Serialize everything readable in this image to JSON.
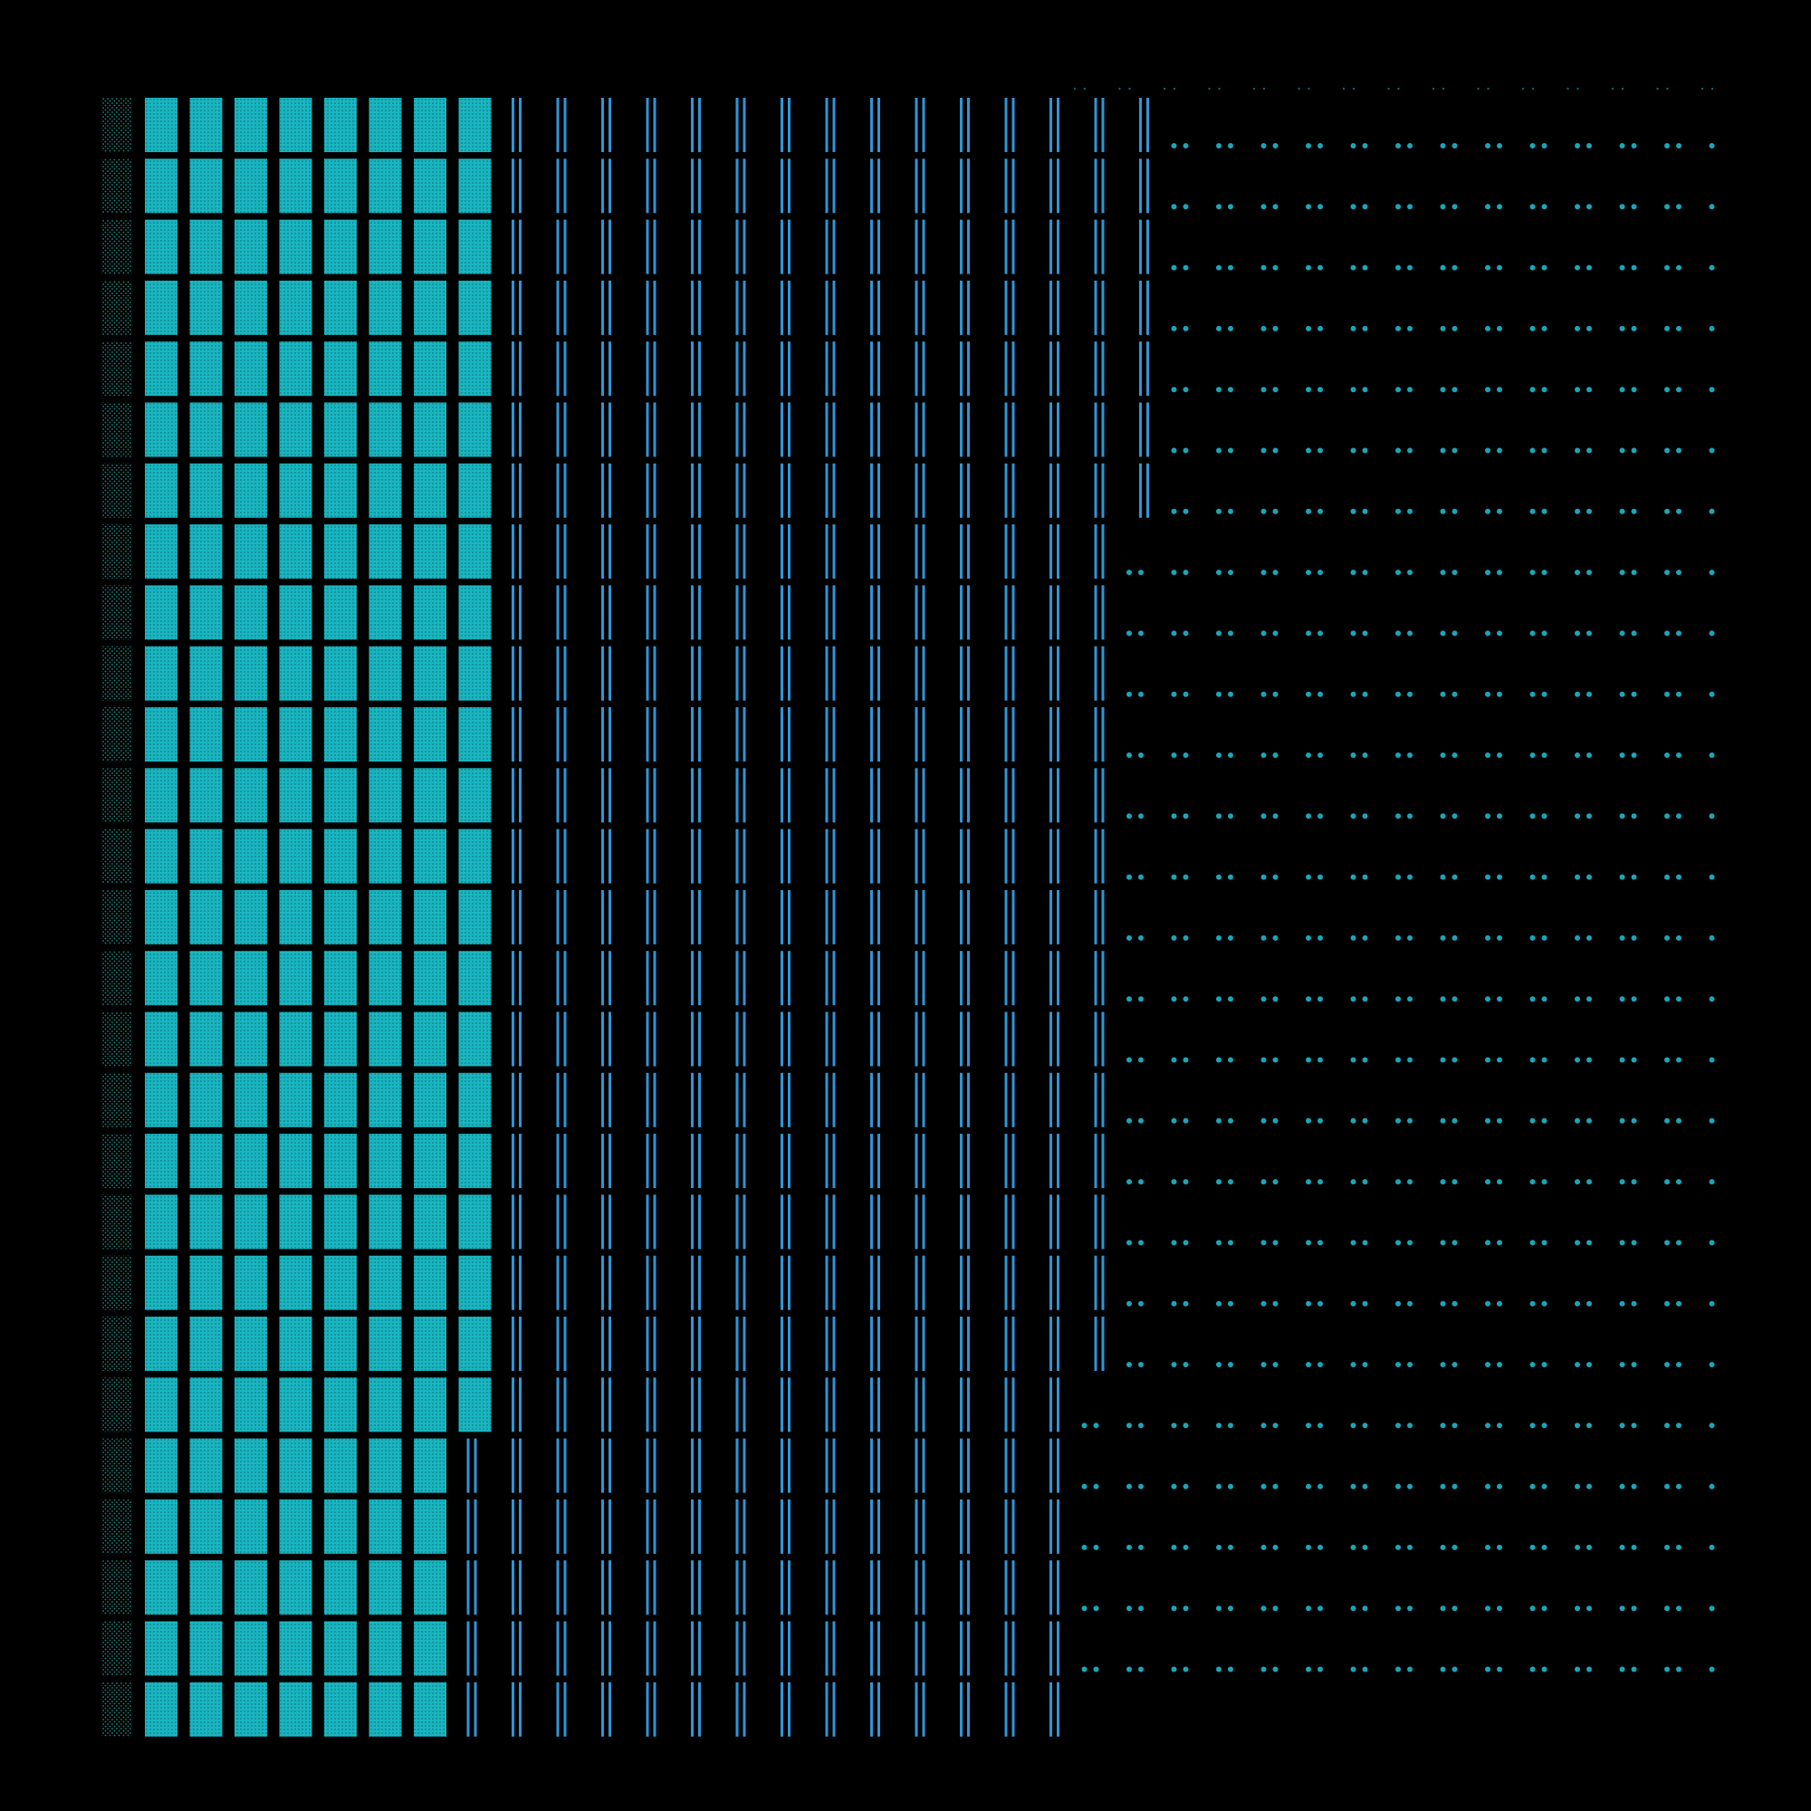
{
  "pattern": {
    "rows": 27,
    "boundaries": {
      "solid_tiles_until": [
        8,
        8,
        8,
        8,
        8,
        8,
        8,
        8,
        8,
        8,
        8,
        8,
        8,
        8,
        8,
        8,
        8,
        8,
        8,
        8,
        8,
        8,
        7,
        7,
        7,
        7,
        7
      ],
      "bar_pairs_until": [
        23,
        23,
        23,
        23,
        23,
        23,
        23,
        22,
        22,
        22,
        22,
        22,
        22,
        22,
        22,
        22,
        22,
        22,
        22,
        22,
        22,
        21,
        21,
        21,
        21,
        21,
        21
      ]
    },
    "colors": {
      "background": "#000000",
      "tile": "#19b5c0",
      "tile_texture": "#0c7f87",
      "edge_column": "#178a80",
      "bar": "#2f95d6",
      "dot": "#1aa6b8"
    }
  }
}
